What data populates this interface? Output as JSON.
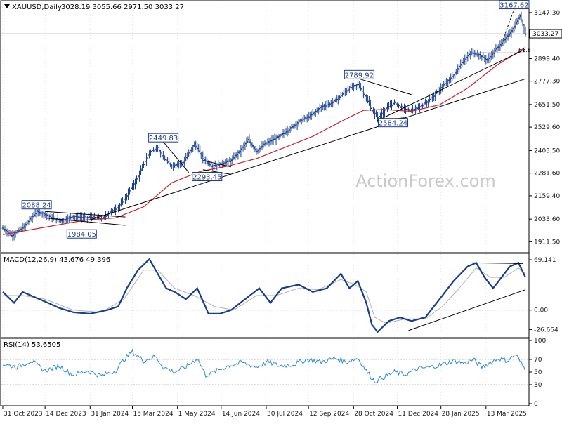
{
  "chart_data": [
    {
      "panel": "price",
      "type": "line",
      "symbol_header": "XAUUSD,Daily",
      "ohlc_header": "3028.19 3055.66 2971.50 3033.27",
      "watermark": "ActionForex.com",
      "last_price_label": "3033.27",
      "ylim": [
        1860,
        3200
      ],
      "yticks": [
        "3147.30",
        "3023.20",
        "2899.40",
        "2777.30",
        "2651.50",
        "2529.60",
        "2403.50",
        "2281.60",
        "2159.40",
        "2033.60",
        "1911.50"
      ],
      "x_dates": [
        "31 Oct 2023",
        "14 Dec 2023",
        "31 Jan 2024",
        "15 Mar 2024",
        "1 May 2024",
        "14 Jun 2024",
        "30 Jul 2024",
        "12 Sep 2024",
        "28 Oct 2024",
        "11 Dec 2024",
        "28 Jan 2025",
        "13 Mar 2025"
      ],
      "x_positions": [
        0,
        30,
        62,
        92,
        124,
        155,
        187,
        217,
        249,
        280,
        311,
        343
      ],
      "bar_count": 372,
      "price_anchors": [
        [
          0,
          1985
        ],
        [
          6,
          1945
        ],
        [
          14,
          1985
        ],
        [
          20,
          2040
        ],
        [
          24,
          2075
        ],
        [
          30,
          2060
        ],
        [
          36,
          2035
        ],
        [
          42,
          2025
        ],
        [
          50,
          2050
        ],
        [
          58,
          2040
        ],
        [
          62,
          2045
        ],
        [
          70,
          2035
        ],
        [
          76,
          2070
        ],
        [
          82,
          2100
        ],
        [
          88,
          2160
        ],
        [
          95,
          2250
        ],
        [
          100,
          2330
        ],
        [
          104,
          2395
        ],
        [
          110,
          2420
        ],
        [
          114,
          2360
        ],
        [
          120,
          2320
        ],
        [
          128,
          2340
        ],
        [
          136,
          2440
        ],
        [
          142,
          2360
        ],
        [
          148,
          2320
        ],
        [
          154,
          2330
        ],
        [
          162,
          2350
        ],
        [
          168,
          2400
        ],
        [
          174,
          2460
        ],
        [
          180,
          2400
        ],
        [
          186,
          2440
        ],
        [
          194,
          2470
        ],
        [
          202,
          2510
        ],
        [
          210,
          2560
        ],
        [
          218,
          2590
        ],
        [
          226,
          2640
        ],
        [
          234,
          2660
        ],
        [
          240,
          2700
        ],
        [
          246,
          2740
        ],
        [
          252,
          2760
        ],
        [
          257,
          2700
        ],
        [
          262,
          2620
        ],
        [
          266,
          2580
        ],
        [
          272,
          2630
        ],
        [
          278,
          2660
        ],
        [
          282,
          2640
        ],
        [
          288,
          2620
        ],
        [
          294,
          2630
        ],
        [
          300,
          2660
        ],
        [
          306,
          2700
        ],
        [
          312,
          2750
        ],
        [
          320,
          2810
        ],
        [
          326,
          2880
        ],
        [
          332,
          2930
        ],
        [
          338,
          2920
        ],
        [
          344,
          2890
        ],
        [
          350,
          2950
        ],
        [
          356,
          3000
        ],
        [
          362,
          3060
        ],
        [
          367,
          3130
        ],
        [
          369,
          3085
        ],
        [
          371,
          3030
        ]
      ],
      "ma_anchors": [
        [
          0,
          1950
        ],
        [
          30,
          1990
        ],
        [
          60,
          2030
        ],
        [
          80,
          2040
        ],
        [
          100,
          2100
        ],
        [
          120,
          2230
        ],
        [
          140,
          2290
        ],
        [
          160,
          2320
        ],
        [
          180,
          2360
        ],
        [
          200,
          2420
        ],
        [
          220,
          2480
        ],
        [
          240,
          2560
        ],
        [
          256,
          2620
        ],
        [
          270,
          2625
        ],
        [
          290,
          2615
        ],
        [
          310,
          2650
        ],
        [
          330,
          2740
        ],
        [
          350,
          2860
        ],
        [
          371,
          2960
        ]
      ],
      "annotations": [
        {
          "label": "2088.24",
          "x_bar": 24,
          "price": 2088.24,
          "label_pos": "above"
        },
        {
          "label": "1984.05",
          "x_bar": 56,
          "price": 1984.05,
          "label_pos": "below"
        },
        {
          "label": "2449.83",
          "x_bar": 114,
          "price": 2449.83,
          "label_pos": "above"
        },
        {
          "label": "2293.45",
          "x_bar": 145,
          "price": 2293.45,
          "label_pos": "below"
        },
        {
          "label": "2789.92",
          "x_bar": 253,
          "price": 2789.92,
          "label_pos": "above"
        },
        {
          "label": "2584.24",
          "x_bar": 277,
          "price": 2584.24,
          "label_pos": "below"
        },
        {
          "label": "3167.62",
          "x_bar": 363,
          "price": 3167.62,
          "label_pos": "above"
        }
      ],
      "fib_label": "61.8",
      "trendlines": [
        {
          "from": [
            62,
            2030
          ],
          "to": [
            371,
            2790
          ]
        },
        {
          "from": [
            266,
            2565
          ],
          "to": [
            371,
            2950
          ]
        },
        {
          "from": [
            30,
            2075
          ],
          "to": [
            87,
            2045
          ]
        },
        {
          "from": [
            30,
            2040
          ],
          "to": [
            87,
            2000
          ]
        },
        {
          "from": [
            114,
            2450
          ],
          "to": [
            132,
            2285
          ]
        },
        {
          "from": [
            142,
            2350
          ],
          "to": [
            162,
            2315
          ]
        },
        {
          "from": [
            142,
            2300
          ],
          "to": [
            162,
            2275
          ]
        },
        {
          "from": [
            253,
            2790
          ],
          "to": [
            290,
            2705
          ]
        },
        {
          "from": [
            266,
            2565
          ],
          "to": [
            285,
            2580
          ]
        },
        {
          "from": [
            335,
            2930
          ],
          "to": [
            371,
            2930
          ]
        }
      ]
    },
    {
      "panel": "macd",
      "type": "line",
      "label": "MACD(12,26,9) 43.676 49.396",
      "ylim": [
        -35,
        75
      ],
      "yticks": [
        "69.141",
        "0.00",
        "-26.664"
      ],
      "macd_anchors": [
        [
          0,
          25
        ],
        [
          8,
          10
        ],
        [
          14,
          25
        ],
        [
          20,
          20
        ],
        [
          26,
          15
        ],
        [
          32,
          10
        ],
        [
          40,
          3
        ],
        [
          50,
          -3
        ],
        [
          62,
          -5
        ],
        [
          74,
          0
        ],
        [
          82,
          5
        ],
        [
          88,
          30
        ],
        [
          96,
          55
        ],
        [
          104,
          70
        ],
        [
          110,
          50
        ],
        [
          116,
          30
        ],
        [
          122,
          25
        ],
        [
          130,
          15
        ],
        [
          138,
          30
        ],
        [
          146,
          -5
        ],
        [
          154,
          -5
        ],
        [
          162,
          0
        ],
        [
          172,
          15
        ],
        [
          182,
          30
        ],
        [
          190,
          10
        ],
        [
          198,
          30
        ],
        [
          210,
          35
        ],
        [
          220,
          25
        ],
        [
          230,
          30
        ],
        [
          240,
          50
        ],
        [
          246,
          30
        ],
        [
          252,
          40
        ],
        [
          258,
          10
        ],
        [
          262,
          -20
        ],
        [
          266,
          -30
        ],
        [
          274,
          -15
        ],
        [
          282,
          -10
        ],
        [
          290,
          -15
        ],
        [
          300,
          -10
        ],
        [
          310,
          15
        ],
        [
          320,
          40
        ],
        [
          330,
          60
        ],
        [
          336,
          65
        ],
        [
          342,
          45
        ],
        [
          348,
          30
        ],
        [
          354,
          45
        ],
        [
          360,
          60
        ],
        [
          366,
          65
        ],
        [
          371,
          45
        ]
      ],
      "signal_anchors": [
        [
          0,
          20
        ],
        [
          14,
          20
        ],
        [
          30,
          15
        ],
        [
          50,
          0
        ],
        [
          70,
          -3
        ],
        [
          86,
          15
        ],
        [
          100,
          55
        ],
        [
          110,
          55
        ],
        [
          122,
          30
        ],
        [
          136,
          20
        ],
        [
          150,
          5
        ],
        [
          164,
          0
        ],
        [
          180,
          20
        ],
        [
          194,
          20
        ],
        [
          210,
          30
        ],
        [
          224,
          28
        ],
        [
          240,
          42
        ],
        [
          250,
          35
        ],
        [
          258,
          25
        ],
        [
          264,
          -10
        ],
        [
          272,
          -18
        ],
        [
          286,
          -12
        ],
        [
          300,
          -12
        ],
        [
          312,
          5
        ],
        [
          324,
          30
        ],
        [
          336,
          58
        ],
        [
          346,
          45
        ],
        [
          356,
          45
        ],
        [
          366,
          58
        ],
        [
          371,
          50
        ]
      ],
      "trendlines": [
        {
          "from": [
            288,
            -28
          ],
          "to": [
            371,
            28
          ]
        },
        {
          "from": [
            333,
            65
          ],
          "to": [
            369,
            64
          ]
        }
      ]
    },
    {
      "panel": "rsi",
      "type": "line",
      "label": "RSI(14) 53.6505",
      "ylim": [
        0,
        100
      ],
      "yticks": [
        "100",
        "70",
        "50",
        "30",
        "0"
      ],
      "rsi_anchors": [
        [
          0,
          62
        ],
        [
          10,
          58
        ],
        [
          20,
          68
        ],
        [
          30,
          52
        ],
        [
          40,
          60
        ],
        [
          50,
          45
        ],
        [
          60,
          52
        ],
        [
          70,
          44
        ],
        [
          80,
          52
        ],
        [
          86,
          70
        ],
        [
          92,
          82
        ],
        [
          100,
          68
        ],
        [
          108,
          75
        ],
        [
          114,
          58
        ],
        [
          122,
          50
        ],
        [
          130,
          58
        ],
        [
          138,
          72
        ],
        [
          144,
          45
        ],
        [
          152,
          52
        ],
        [
          160,
          60
        ],
        [
          170,
          65
        ],
        [
          180,
          58
        ],
        [
          188,
          66
        ],
        [
          196,
          60
        ],
        [
          206,
          62
        ],
        [
          216,
          70
        ],
        [
          226,
          66
        ],
        [
          236,
          72
        ],
        [
          244,
          66
        ],
        [
          252,
          72
        ],
        [
          258,
          52
        ],
        [
          264,
          35
        ],
        [
          270,
          42
        ],
        [
          278,
          50
        ],
        [
          286,
          46
        ],
        [
          294,
          55
        ],
        [
          304,
          58
        ],
        [
          312,
          62
        ],
        [
          320,
          68
        ],
        [
          328,
          64
        ],
        [
          334,
          70
        ],
        [
          340,
          58
        ],
        [
          346,
          65
        ],
        [
          352,
          72
        ],
        [
          358,
          68
        ],
        [
          364,
          78
        ],
        [
          369,
          60
        ],
        [
          371,
          54
        ]
      ]
    }
  ],
  "colors": {
    "bars": "#173e8c",
    "ma": "#cc2127",
    "signal": "#b0b0b0",
    "rsi": "#2a88d6",
    "trend": "#000000",
    "dotted_grid": "#a0a0a0",
    "watermark": "#c9c9c9",
    "text": "#1a1a1a"
  }
}
